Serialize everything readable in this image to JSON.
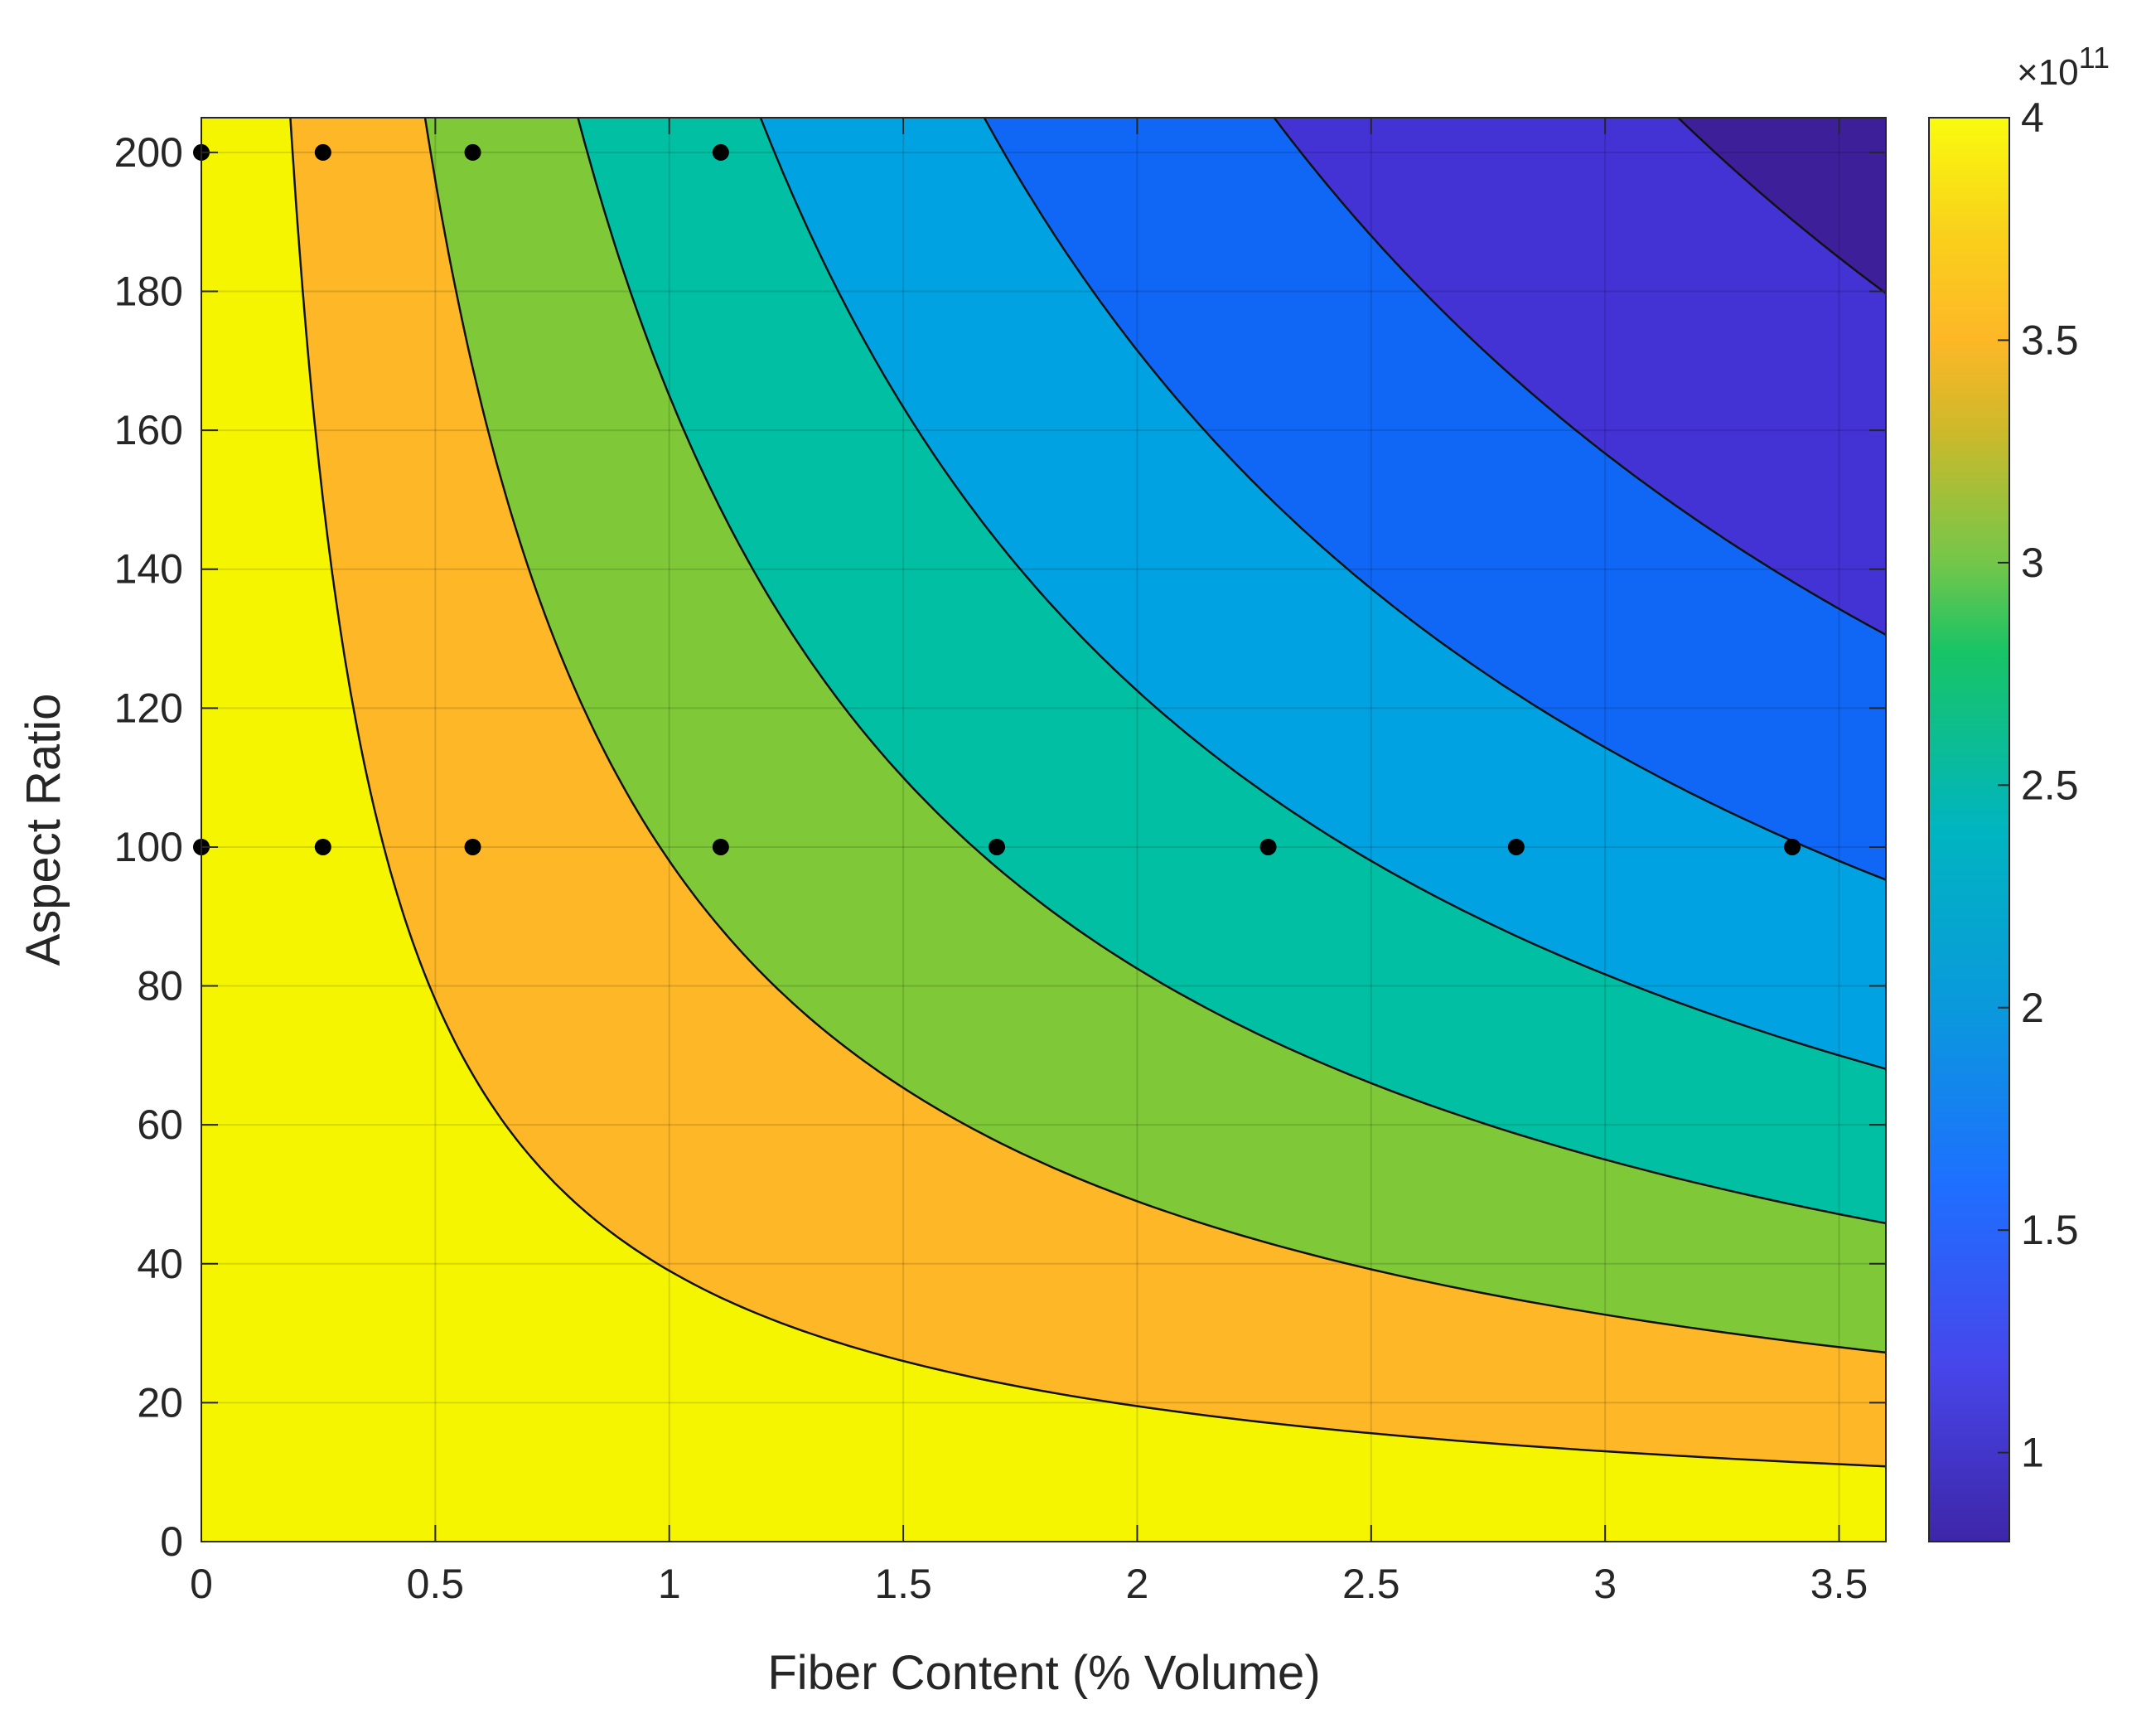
{
  "chart_data": {
    "type": "contour",
    "title": "",
    "xlabel": "Fiber Content (% Volume)",
    "ylabel": "Aspect Ratio",
    "xlim": [
      0,
      3.6
    ],
    "ylim": [
      0,
      205
    ],
    "x_ticks": [
      0,
      0.5,
      1,
      1.5,
      2,
      2.5,
      3,
      3.5
    ],
    "x_tick_labels": [
      "0",
      "0.5",
      "1",
      "1.5",
      "2",
      "2.5",
      "3",
      "3.5"
    ],
    "y_ticks": [
      0,
      20,
      40,
      60,
      80,
      100,
      120,
      140,
      160,
      180,
      200
    ],
    "y_tick_labels": [
      "0",
      "20",
      "40",
      "60",
      "80",
      "100",
      "120",
      "140",
      "160",
      "180",
      "200"
    ],
    "grid": true,
    "contour_model": "level boundaries follow x * y = constant",
    "contour_levels": [
      {
        "name": "level-1",
        "xy_constant": 39
      },
      {
        "name": "level-2",
        "xy_constant": 98
      },
      {
        "name": "level-3",
        "xy_constant": 165
      },
      {
        "name": "level-4",
        "xy_constant": 245
      },
      {
        "name": "level-5",
        "xy_constant": 343
      },
      {
        "name": "level-6",
        "xy_constant": 470
      },
      {
        "name": "level-7",
        "xy_constant": 647
      }
    ],
    "region_colors": [
      "#F5F500",
      "#FDB727",
      "#7FC838",
      "#00BFA3",
      "#01A2E1",
      "#1167F5",
      "#4332D4",
      "#3E1F9A"
    ],
    "sample_points": [
      {
        "x": 0,
        "y": 200
      },
      {
        "x": 0.26,
        "y": 200
      },
      {
        "x": 0.58,
        "y": 200
      },
      {
        "x": 1.11,
        "y": 200
      },
      {
        "x": 0,
        "y": 100
      },
      {
        "x": 0.26,
        "y": 100
      },
      {
        "x": 0.58,
        "y": 100
      },
      {
        "x": 1.11,
        "y": 100
      },
      {
        "x": 1.7,
        "y": 100
      },
      {
        "x": 2.28,
        "y": 100
      },
      {
        "x": 2.81,
        "y": 100
      },
      {
        "x": 3.4,
        "y": 100
      }
    ],
    "colorbar": {
      "range": [
        0.8,
        4.0
      ],
      "ticks": [
        1,
        1.5,
        2,
        2.5,
        3,
        3.5,
        4
      ],
      "tick_labels": [
        "1",
        "1.5",
        "2",
        "2.5",
        "3",
        "3.5",
        "4"
      ],
      "multiplier_base": "×10",
      "multiplier_exponent": "11",
      "colormap": [
        {
          "v": 0.8,
          "c": "#3E26A8"
        },
        {
          "v": 1.2,
          "c": "#4746EB"
        },
        {
          "v": 1.6,
          "c": "#1E6FFF"
        },
        {
          "v": 2.0,
          "c": "#0A99DC"
        },
        {
          "v": 2.4,
          "c": "#00B5C0"
        },
        {
          "v": 2.8,
          "c": "#18C466"
        },
        {
          "v": 3.0,
          "c": "#74C64A"
        },
        {
          "v": 3.3,
          "c": "#CEB92A"
        },
        {
          "v": 3.5,
          "c": "#FDB727"
        },
        {
          "v": 3.75,
          "c": "#F9D21B"
        },
        {
          "v": 4.0,
          "c": "#F9FB0E"
        }
      ]
    }
  }
}
